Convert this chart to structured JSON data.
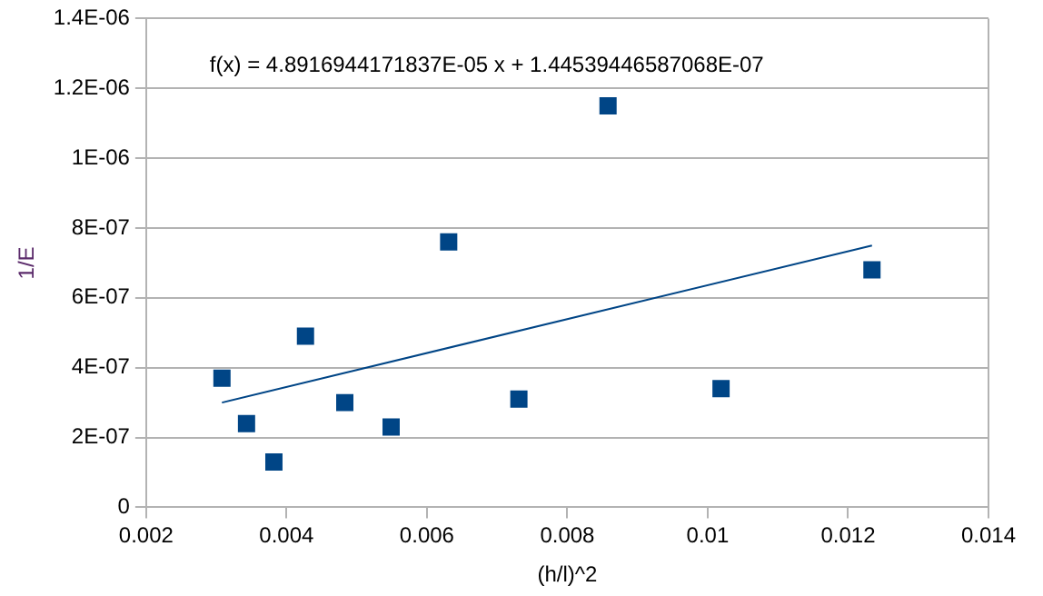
{
  "chart_data": {
    "type": "scatter",
    "xlabel": "(h/l)^2",
    "ylabel": "1/E",
    "annotations": [
      "f(x) = 4.8916944171837E-05 x + 1.44539446587068E-07"
    ],
    "series": [
      {
        "color": "#004586",
        "x": [
          0.00308,
          0.00343,
          0.00382,
          0.00427,
          0.00483,
          0.00549,
          0.00631,
          0.00731,
          0.00858,
          0.01019,
          0.01234
        ],
        "values": [
          3.7e-07,
          2.4e-07,
          1.3e-07,
          4.9e-07,
          3e-07,
          2.3e-07,
          7.6e-07,
          3.1e-07,
          1.15e-06,
          3.4e-07,
          6.8e-07
        ]
      },
      {
        "type": "line",
        "color": "#004586",
        "marker": "none",
        "x": [
          0.00308,
          0.01234
        ],
        "values": [
          3e-07,
          7.5e-07
        ]
      }
    ],
    "xlim": [
      0.002,
      0.014
    ],
    "xticks": [
      0.002,
      0.004,
      0.006,
      0.008,
      0.01,
      0.012,
      0.014
    ],
    "ylim": [
      0,
      1.4e-06
    ],
    "yticks": [
      0,
      {
        "value": 2e-07,
        "label": "2E-07"
      },
      {
        "value": 4e-07,
        "label": "4E-07"
      },
      {
        "value": 6e-07,
        "label": "6E-07"
      },
      {
        "value": 8e-07,
        "label": "8E-07"
      },
      {
        "value": 1e-06,
        "label": "1E-06"
      },
      {
        "value": 1.2e-06,
        "label": "1.2E-06"
      },
      {
        "value": 1.4e-06,
        "label": "1.4E-06"
      }
    ],
    "grid": "y",
    "legend": false,
    "marker": "square"
  }
}
